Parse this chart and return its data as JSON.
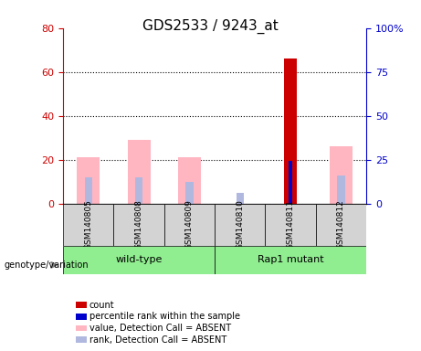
{
  "title": "GDS2533 / 9243_at",
  "samples": [
    "GSM140805",
    "GSM140808",
    "GSM140809",
    "GSM140810",
    "GSM140811",
    "GSM140812"
  ],
  "groups": [
    "wild-type",
    "wild-type",
    "wild-type",
    "Rap1 mutant",
    "Rap1 mutant",
    "Rap1 mutant"
  ],
  "group_labels": [
    "wild-type",
    "Rap1 mutant"
  ],
  "group_colors": [
    "#90ee90",
    "#90ee90"
  ],
  "pink_values": [
    21,
    29,
    21,
    0,
    0,
    26
  ],
  "pink_rank_values": [
    12,
    12,
    10,
    0,
    0,
    13
  ],
  "blue_rank_values": [
    12,
    12,
    10,
    5,
    19.5,
    13
  ],
  "red_count_values": [
    0,
    0,
    0,
    0,
    66,
    0
  ],
  "blue_percentile_values": [
    0,
    0,
    0,
    0,
    19.5,
    0
  ],
  "ylim_left": [
    0,
    80
  ],
  "ylim_right": [
    0,
    100
  ],
  "yticks_left": [
    0,
    20,
    40,
    60,
    80
  ],
  "yticks_right": [
    0,
    25,
    50,
    75,
    100
  ],
  "ytick_labels_left": [
    "0",
    "20",
    "40",
    "60",
    "80"
  ],
  "ytick_labels_right": [
    "0",
    "25",
    "50",
    "75",
    "100%"
  ],
  "left_axis_color": "#cc0000",
  "right_axis_color": "#0000cc",
  "bar_width": 0.35,
  "bg_color": "#f0f0f0",
  "plot_bg": "#ffffff",
  "legend_items": [
    {
      "label": "count",
      "color": "#cc0000"
    },
    {
      "label": "percentile rank within the sample",
      "color": "#0000cc"
    },
    {
      "label": "value, Detection Call = ABSENT",
      "color": "#ffb6c1"
    },
    {
      "label": "rank, Detection Call = ABSENT",
      "color": "#b0b8e0"
    }
  ]
}
